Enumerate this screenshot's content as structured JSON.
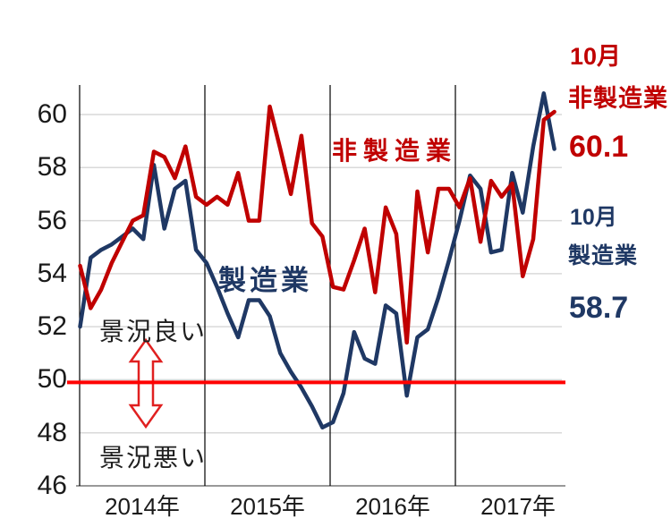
{
  "chart_data": {
    "type": "line",
    "title": "",
    "xlabel": "",
    "ylabel": "",
    "y_ticks": [
      60,
      58,
      56,
      54,
      52,
      50,
      48,
      46
    ],
    "ylim": [
      46,
      61.3
    ],
    "grid": "horizontal",
    "legend_position": "inline-labels",
    "baseline_value": 50,
    "year_tick_labels": [
      "2014年",
      "2015年",
      "2016年",
      "2017年"
    ],
    "x_months": [
      "2014-01",
      "2014-02",
      "2014-03",
      "2014-04",
      "2014-05",
      "2014-06",
      "2014-07",
      "2014-08",
      "2014-09",
      "2014-10",
      "2014-11",
      "2014-12",
      "2015-01",
      "2015-02",
      "2015-03",
      "2015-04",
      "2015-05",
      "2015-06",
      "2015-07",
      "2015-08",
      "2015-09",
      "2015-10",
      "2015-11",
      "2015-12",
      "2016-01",
      "2016-02",
      "2016-03",
      "2016-04",
      "2016-05",
      "2016-06",
      "2016-07",
      "2016-08",
      "2016-09",
      "2016-10",
      "2016-11",
      "2016-12",
      "2017-01",
      "2017-02",
      "2017-03",
      "2017-04",
      "2017-05",
      "2017-06",
      "2017-07",
      "2017-08",
      "2017-09",
      "2017-10"
    ],
    "series": [
      {
        "name": "製造業",
        "color": "#1F3864",
        "values": [
          52.0,
          54.6,
          54.9,
          55.1,
          55.4,
          55.7,
          55.3,
          58.1,
          55.7,
          57.2,
          57.5,
          54.9,
          54.4,
          53.5,
          52.5,
          51.6,
          53.0,
          53.0,
          52.4,
          51.0,
          50.3,
          49.7,
          49.0,
          48.2,
          48.4,
          49.5,
          51.8,
          50.8,
          50.6,
          52.8,
          52.5,
          49.4,
          51.6,
          51.9,
          53.1,
          54.5,
          56.0,
          57.7,
          57.2,
          54.8,
          54.9,
          57.8,
          56.3,
          58.8,
          60.8,
          58.7
        ]
      },
      {
        "name": "非製造業",
        "color": "#C00000",
        "values": [
          54.3,
          52.7,
          53.4,
          54.4,
          55.2,
          56.0,
          56.2,
          58.6,
          58.4,
          57.6,
          58.8,
          56.9,
          56.6,
          56.9,
          56.6,
          57.8,
          56.0,
          56.0,
          60.3,
          58.7,
          57.0,
          59.2,
          55.9,
          55.4,
          53.5,
          53.4,
          54.5,
          55.7,
          53.3,
          56.5,
          55.5,
          51.4,
          57.1,
          54.8,
          57.2,
          57.2,
          56.5,
          57.6,
          55.2,
          57.5,
          56.9,
          57.4,
          53.9,
          55.3,
          59.8,
          60.1
        ]
      }
    ]
  },
  "annotations": {
    "good": "景況良い",
    "bad": "景況悪い",
    "mfg_inline": "製造業",
    "nonmfg_inline": "非製造業",
    "latest_nonmfg": {
      "month": "10月",
      "name": "非製造業",
      "value": "60.1"
    },
    "latest_mfg": {
      "month": "10月",
      "name": "製造業",
      "value": "58.7"
    }
  },
  "colors": {
    "nonmfg_line": "#C00000",
    "mfg_line": "#1F3864",
    "baseline": "#FF0000",
    "gridline": "#D9D9D9",
    "divider": "#000000",
    "axis": "#999999",
    "text": "#1A1A1A"
  }
}
